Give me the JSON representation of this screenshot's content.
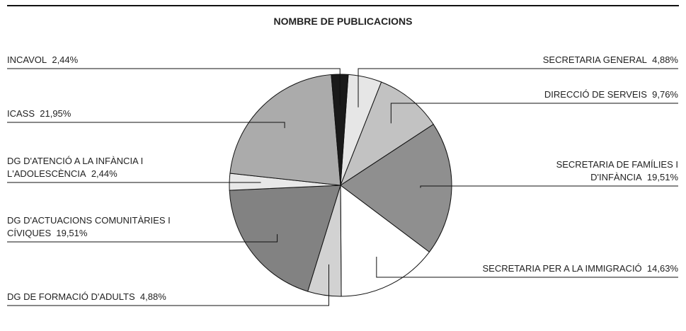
{
  "chart_data": {
    "type": "pie",
    "title": "NOMBRE DE PUBLICACIONS",
    "categories": [
      "SECRETARIA GENERAL",
      "DIRECCIÓ DE SERVEIS",
      "SECRETARIA DE FAMÍLIES I D'INFÀNCIA",
      "SECRETARIA PER A LA IMMIGRACIÓ",
      "DG DE FORMACIÓ D'ADULTS",
      "DG D'ACTUACIONS COMUNITÀRIES I CÍVIQUES",
      "DG D'ATENCIÓ A LA INFÀNCIA I L'ADOLESCÈNCIA",
      "ICASS",
      "INCAVOL"
    ],
    "values": [
      4.88,
      9.76,
      19.51,
      14.63,
      4.88,
      19.51,
      2.44,
      21.95,
      2.44
    ],
    "value_labels": [
      "4,88%",
      "9,76%",
      "19,51%",
      "14,63%",
      "4,88%",
      "19,51%",
      "2,44%",
      "21,95%",
      "2,44%"
    ],
    "colors": [
      "#e6e6e6",
      "#c2c2c2",
      "#8f8f8f",
      "#ffffff",
      "#d2d2d2",
      "#828282",
      "#e8e8e8",
      "#ababab",
      "#1a1a1a"
    ]
  }
}
